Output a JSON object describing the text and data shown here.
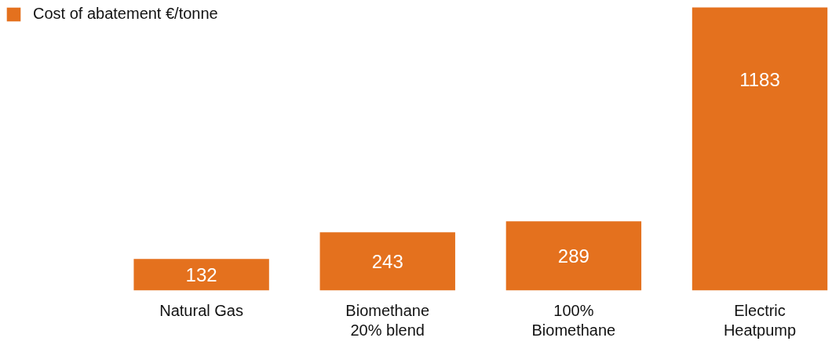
{
  "chart_data": {
    "type": "bar",
    "categories": [
      "Natural Gas",
      "Biomethane\n20% blend",
      "100%\nBiomethane",
      "Electric\nHeatpump"
    ],
    "series": [
      {
        "name": "Cost of abatement €/tonne",
        "color": "#e4711e",
        "values": [
          132,
          243,
          289,
          1183
        ]
      }
    ],
    "data_labels": true,
    "legend": "top left",
    "tick_labels": "x"
  }
}
